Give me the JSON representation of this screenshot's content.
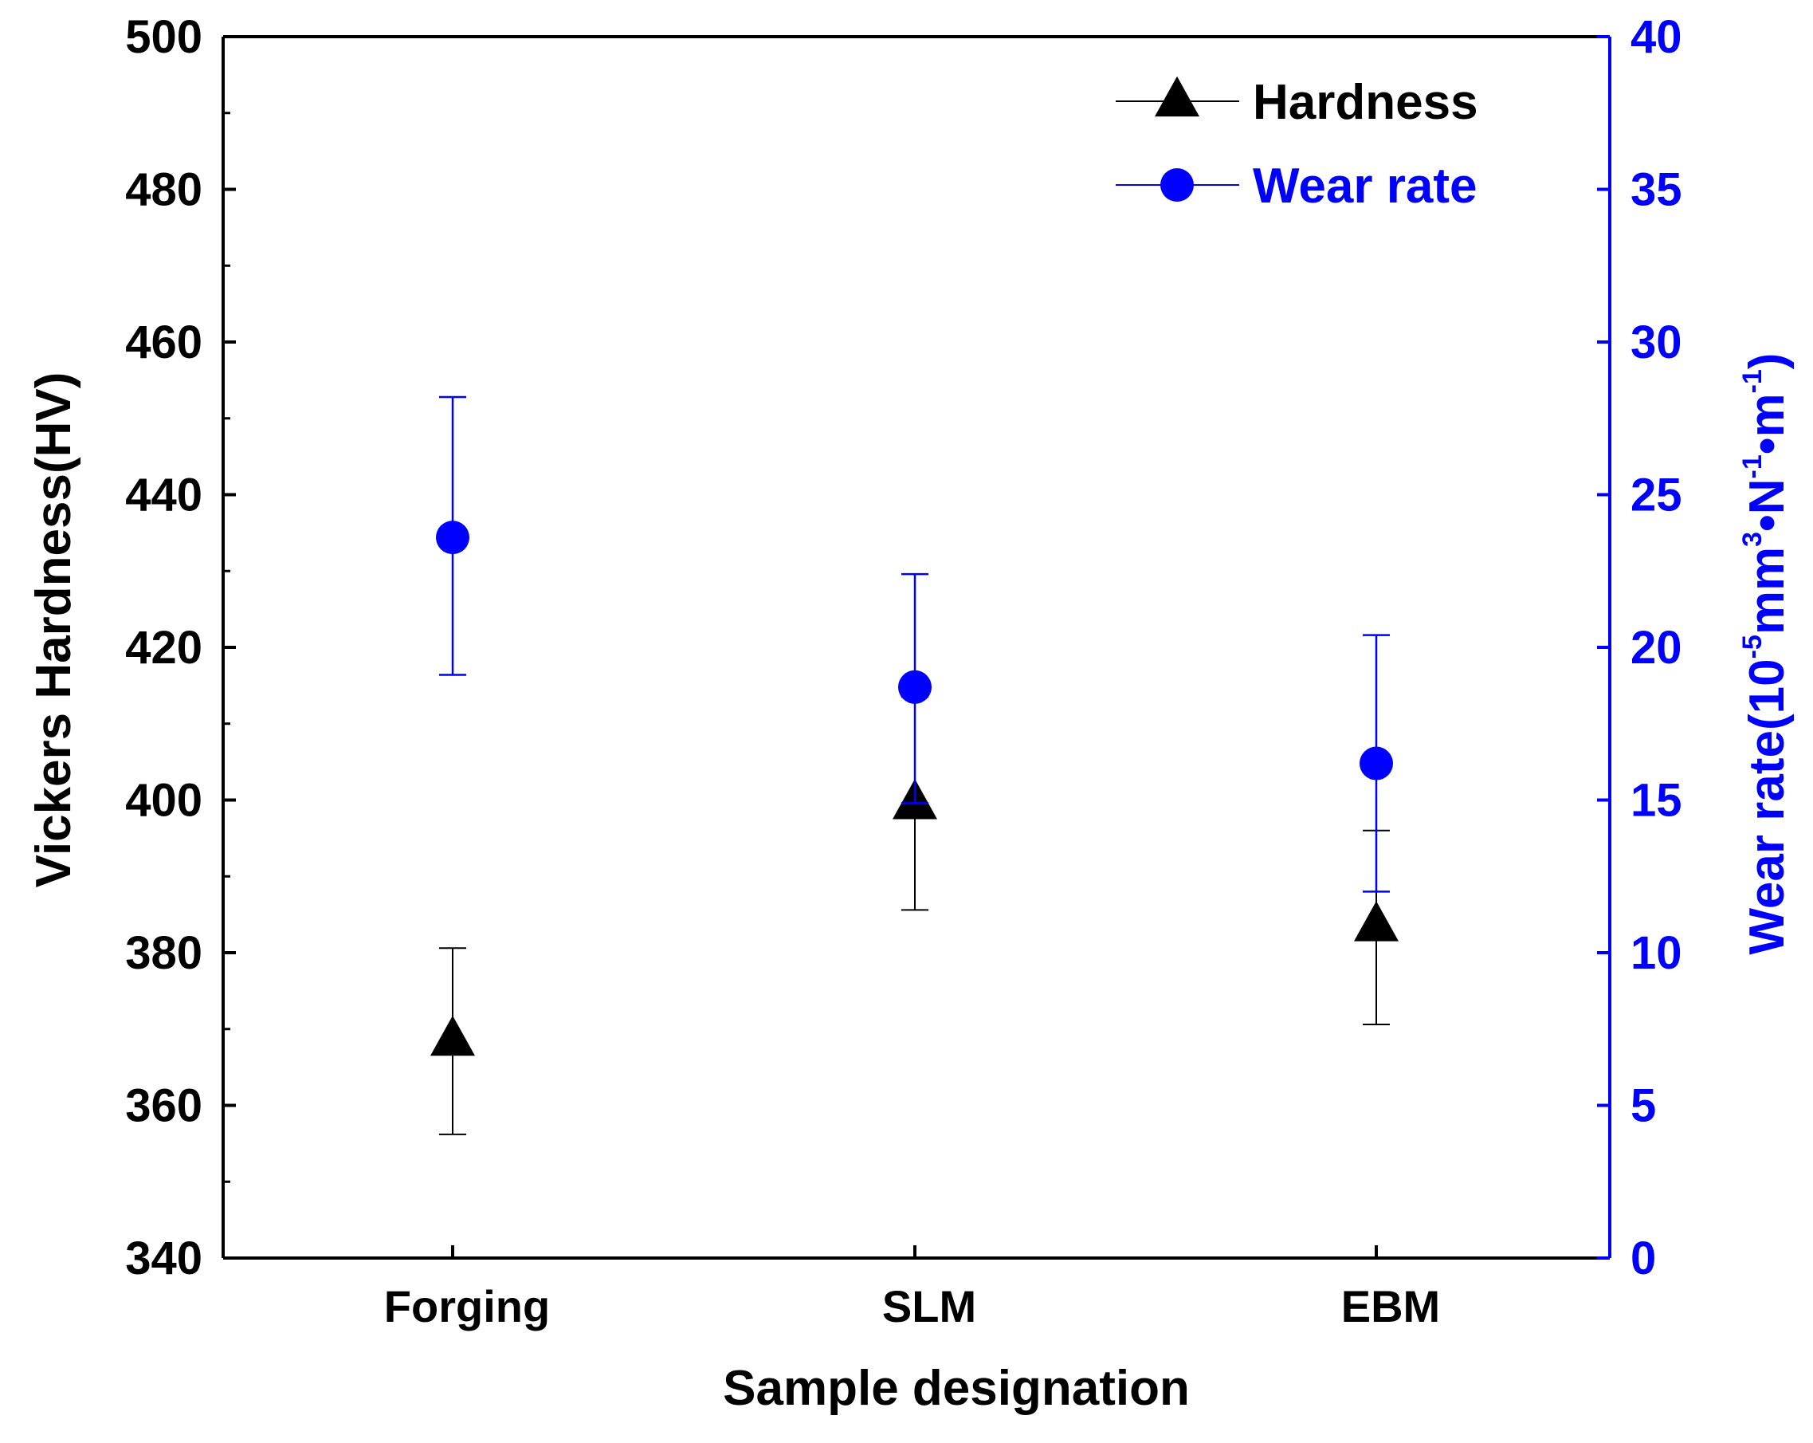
{
  "chart_data": {
    "type": "scatter",
    "title": "",
    "xlabel": "Sample designation",
    "categories": [
      "Forging",
      "SLM",
      "EBM"
    ],
    "y_left": {
      "label": "Vickers Hardness(HV)",
      "range": [
        340,
        500
      ],
      "ticks": [
        340,
        360,
        380,
        400,
        420,
        440,
        460,
        480,
        500
      ]
    },
    "y_right": {
      "label_main": "Wear rate(10",
      "label_exp1": "-5",
      "label_unit1": "mm",
      "label_exp2": "3",
      "label_unit2": "•N",
      "label_exp3": "-1",
      "label_unit3": "•m",
      "label_exp4": "-1",
      "label_close": ")",
      "range": [
        0,
        40
      ],
      "ticks": [
        0,
        5,
        10,
        15,
        20,
        25,
        30,
        35,
        40
      ],
      "color": "#0000ff"
    },
    "series": [
      {
        "name": "Hardness",
        "axis": "left",
        "marker": "triangle",
        "color": "#000000",
        "values": [
          368.5,
          399.5,
          383.5
        ],
        "err_low": [
          356.2,
          385.6,
          370.6
        ],
        "err_high": [
          380.6,
          413.5,
          396.0
        ]
      },
      {
        "name": "Wear rate",
        "axis": "right",
        "marker": "circle",
        "color": "#0000ff",
        "values": [
          23.6,
          18.7,
          16.2
        ],
        "err_low": [
          19.1,
          14.9,
          12.0
        ],
        "err_high": [
          28.2,
          22.4,
          20.4
        ]
      }
    ],
    "legend": {
      "position": "top-right",
      "entries": [
        "Hardness",
        "Wear rate"
      ]
    }
  }
}
